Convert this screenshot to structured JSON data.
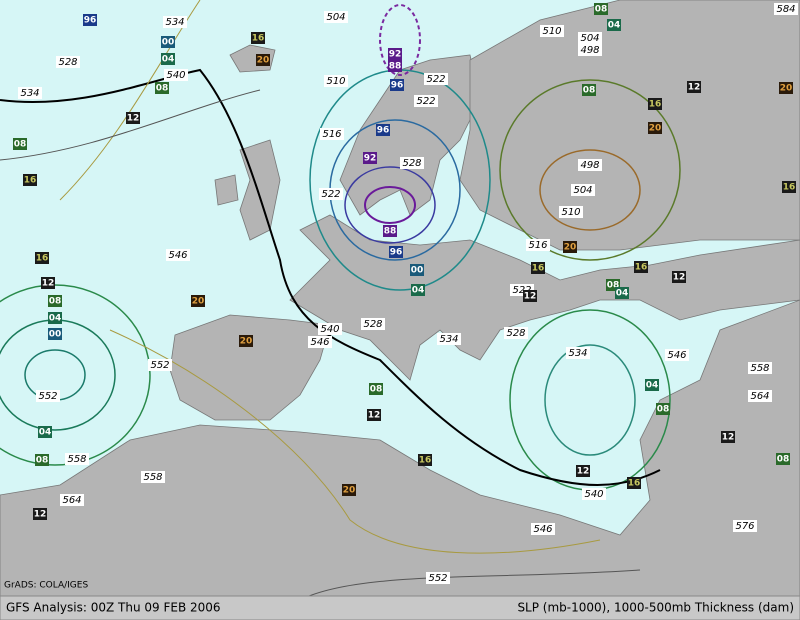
{
  "map": {
    "credit": "GrADS: COLA/IGES",
    "footer_left": "GFS Analysis: 00Z Thu 09 FEB 2006",
    "footer_right": "SLP (mb-1000), 1000-500mb Thickness (dam)",
    "thickness_labels": [
      "534",
      "528",
      "534",
      "540",
      "504",
      "510",
      "522",
      "522",
      "516",
      "528",
      "522",
      "510",
      "504",
      "498",
      "498",
      "504",
      "510",
      "516",
      "522",
      "546",
      "540",
      "546",
      "528",
      "534",
      "528",
      "534",
      "546",
      "552",
      "552",
      "558",
      "558",
      "564",
      "540",
      "546",
      "552",
      "576",
      "558",
      "564",
      "584"
    ],
    "pressure_labels": [
      "96",
      "00",
      "04",
      "08",
      "12",
      "08",
      "16",
      "16",
      "20",
      "92",
      "88",
      "96",
      "96",
      "92",
      "88",
      "96",
      "00",
      "04",
      "08",
      "04",
      "08",
      "12",
      "16",
      "20",
      "16",
      "20",
      "20",
      "16",
      "16",
      "12",
      "08",
      "12",
      "04",
      "16",
      "12",
      "08",
      "04",
      "00",
      "20",
      "20",
      "08",
      "12",
      "04",
      "08",
      "04",
      "08",
      "16",
      "12",
      "16",
      "20",
      "12",
      "08",
      "12"
    ]
  }
}
